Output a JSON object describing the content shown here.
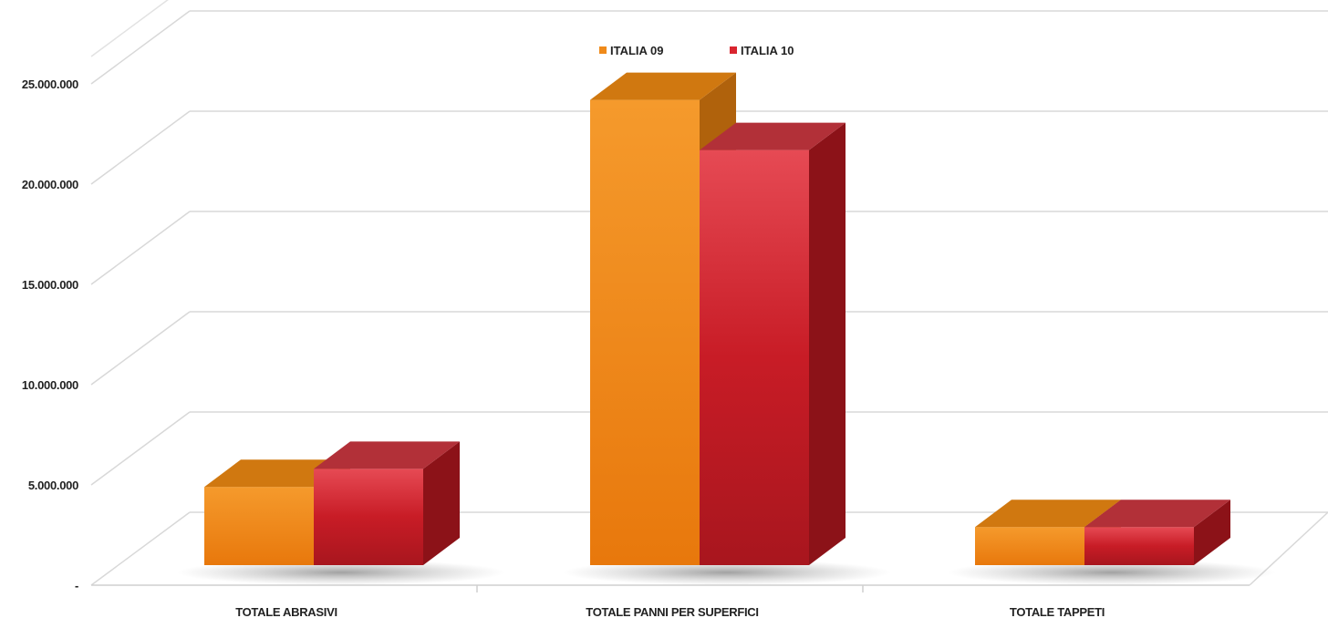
{
  "chart_data": {
    "type": "bar",
    "categories": [
      "TOTALE ABRASIVI",
      "TOTALE PANNI PER SUPERFICI",
      "TOTALE TAPPETI"
    ],
    "series": [
      {
        "name": "ITALIA 09",
        "values": [
          3900000,
          23200000,
          1900000
        ],
        "color": "#ef8a1a"
      },
      {
        "name": "ITALIA 10",
        "values": [
          4800000,
          20700000,
          1900000
        ],
        "color": "#d9252f"
      }
    ],
    "ylim": [
      0,
      25000000
    ],
    "yticks": [
      {
        "value": 0,
        "label": "-"
      },
      {
        "value": 5000000,
        "label": "5.000.000"
      },
      {
        "value": 10000000,
        "label": "10.000.000"
      },
      {
        "value": 15000000,
        "label": "15.000.000"
      },
      {
        "value": 20000000,
        "label": "20.000.000"
      },
      {
        "value": 25000000,
        "label": "25.000.000"
      }
    ],
    "grid": true,
    "legend": "top-center",
    "style": "3d-bars"
  }
}
